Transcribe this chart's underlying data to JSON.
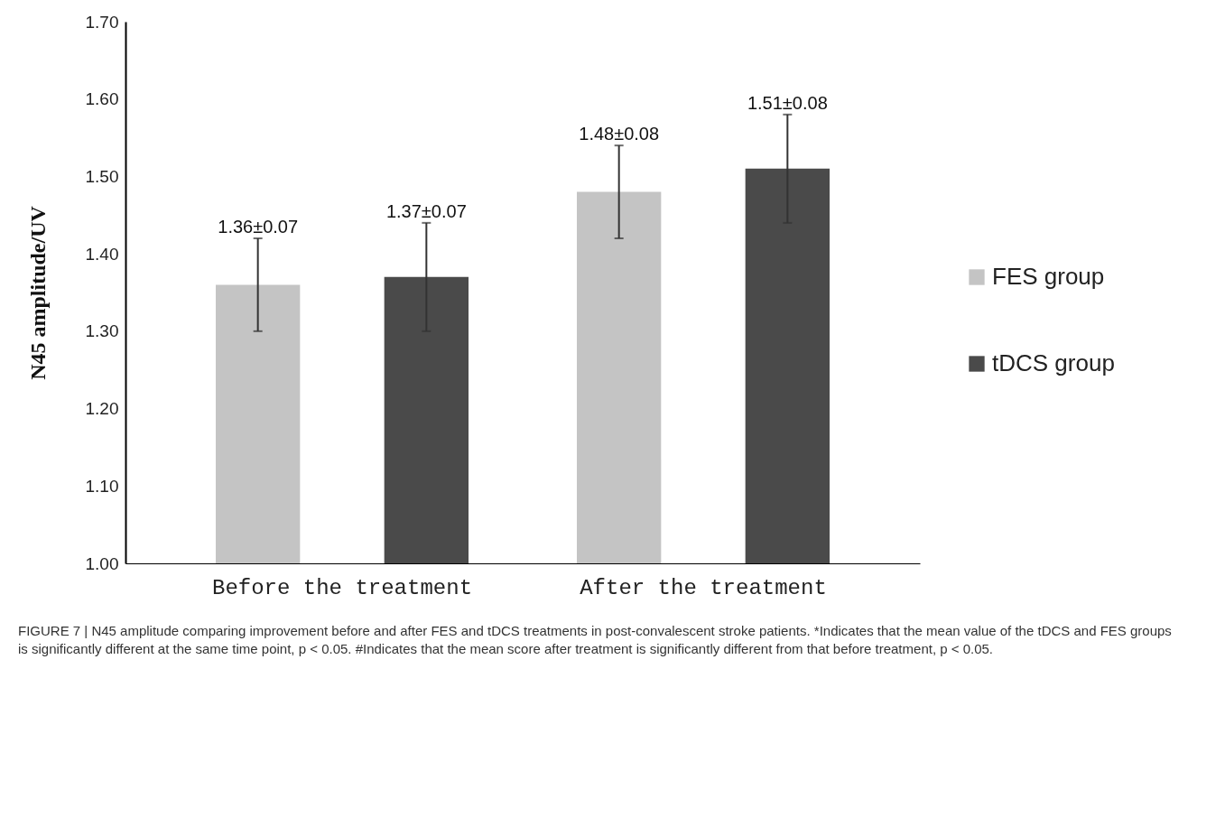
{
  "chart_data": {
    "type": "bar",
    "ylabel": "N45 amplitude/UV",
    "categories": [
      "Before the treatment",
      "After the treatment"
    ],
    "series": [
      {
        "name": "FES group",
        "color": "#c4c4c4",
        "values": [
          1.36,
          1.48
        ],
        "errors": [
          0.06,
          0.06
        ],
        "value_labels": [
          "1.36±0.07",
          "1.48±0.08"
        ]
      },
      {
        "name": "tDCS group",
        "color": "#4a4a4a",
        "values": [
          1.37,
          1.51
        ],
        "errors": [
          0.07,
          0.07
        ],
        "value_labels": [
          "1.37±0.07",
          "1.51±0.08"
        ]
      }
    ],
    "ylim": [
      1.0,
      1.7
    ],
    "yticks": [
      {
        "value": 1.0,
        "label": "1.00"
      },
      {
        "value": 1.1,
        "label": "1.10"
      },
      {
        "value": 1.2,
        "label": "1.20"
      },
      {
        "value": 1.3,
        "label": "1.30"
      },
      {
        "value": 1.4,
        "label": "1.40"
      },
      {
        "value": 1.5,
        "label": "1.50"
      },
      {
        "value": 1.6,
        "label": "1.60"
      },
      {
        "value": 1.7,
        "label": "1.70"
      }
    ],
    "grid": false,
    "legend": "right",
    "annotations": [
      "FIGURE 7 | N45 amplitude comparing improvement before and after FES and tDCS treatments in post-convalescent stroke patients. *Indicates that the mean value of the tDCS and FES groups is significantly different at the same time point, p < 0.05. #Indicates that the mean score after treatment is significantly different from that before treatment, p < 0.05."
    ]
  }
}
